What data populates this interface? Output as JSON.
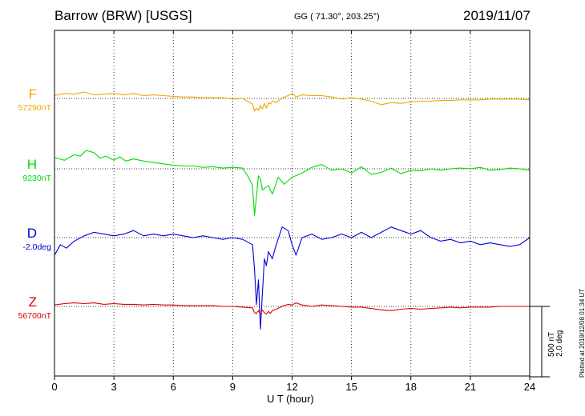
{
  "header": {
    "station": "Barrow (BRW)  [USGS]",
    "coords": "GG ( 71.30°, 203.25°)",
    "date": "2019/11/07"
  },
  "side_note": "Plotted at 2019/12/08 01:34 UT",
  "scale": {
    "amplitude": "500 nT",
    "angle": "2.0 deg"
  },
  "colors": {
    "F": "#f0a800",
    "H": "#00dd00",
    "D": "#0000dd",
    "Z": "#dd0000"
  },
  "channels": [
    {
      "letter": "F",
      "baseline": "57290nT",
      "color": "#f0a800"
    },
    {
      "letter": "H",
      "baseline": "9230nT",
      "color": "#00dd00"
    },
    {
      "letter": "D",
      "baseline": "-2.0deg",
      "color": "#0000dd"
    },
    {
      "letter": "Z",
      "baseline": "56700nT",
      "color": "#dd0000"
    }
  ],
  "chart_data": {
    "type": "line",
    "xlabel": "U T (hour)",
    "xlim": [
      0,
      24
    ],
    "xticks": [
      "0",
      "3",
      "6",
      "9",
      "12",
      "15",
      "18",
      "21",
      "24"
    ],
    "series": [
      {
        "name": "F",
        "unit": "nT",
        "baseline": 57290,
        "x": [
          0,
          0.5,
          1,
          1.5,
          2,
          2.5,
          3,
          3.5,
          4,
          4.5,
          5,
          5.5,
          6,
          6.5,
          7,
          7.5,
          8,
          8.5,
          9,
          9.5,
          10,
          10.1,
          10.2,
          10.3,
          10.4,
          10.5,
          10.6,
          10.7,
          10.8,
          10.9,
          11,
          11.2,
          11.5,
          11.8,
          12,
          12.2,
          12.5,
          13,
          13.5,
          14,
          14.5,
          15,
          15.5,
          16,
          16.5,
          17,
          17.5,
          18,
          18.5,
          19,
          19.5,
          20,
          20.5,
          21,
          21.5,
          22,
          22.5,
          23,
          23.5,
          24
        ],
        "values": [
          20,
          35,
          30,
          45,
          25,
          30,
          35,
          25,
          35,
          20,
          25,
          20,
          15,
          10,
          10,
          5,
          5,
          5,
          -5,
          0,
          -40,
          -90,
          -70,
          -85,
          -50,
          -75,
          -35,
          -70,
          -30,
          -40,
          -20,
          -30,
          5,
          20,
          35,
          10,
          25,
          20,
          20,
          10,
          -5,
          5,
          -5,
          -20,
          -45,
          -30,
          -35,
          -25,
          -20,
          -20,
          -15,
          -15,
          -10,
          -10,
          -10,
          -5,
          -5,
          -5,
          -5,
          -10
        ]
      },
      {
        "name": "H",
        "unit": "nT",
        "baseline": 9230,
        "x": [
          0,
          0.5,
          1,
          1.3,
          1.6,
          2,
          2.3,
          2.6,
          3,
          3.3,
          3.6,
          4,
          4.5,
          5,
          5.5,
          6,
          6.5,
          7,
          7.5,
          8,
          8.5,
          9,
          9.5,
          9.8,
          10,
          10.1,
          10.2,
          10.3,
          10.4,
          10.5,
          10.6,
          10.8,
          11,
          11.3,
          11.6,
          12,
          12.5,
          13,
          13.5,
          14,
          14.5,
          15,
          15.5,
          16,
          16.5,
          17,
          17.5,
          18,
          18.5,
          19,
          19.5,
          20,
          20.5,
          21,
          21.5,
          22,
          22.5,
          23,
          23.5,
          24
        ],
        "values": [
          80,
          60,
          100,
          90,
          130,
          115,
          75,
          90,
          60,
          85,
          55,
          70,
          55,
          45,
          35,
          25,
          20,
          20,
          10,
          15,
          5,
          10,
          5,
          -60,
          -120,
          -330,
          -200,
          -50,
          -70,
          -150,
          -140,
          -120,
          -180,
          -60,
          -110,
          -60,
          -30,
          10,
          30,
          -10,
          0,
          -30,
          15,
          -40,
          -25,
          5,
          -35,
          -10,
          -15,
          0,
          -10,
          0,
          5,
          0,
          10,
          -10,
          -5,
          5,
          0,
          -10
        ]
      },
      {
        "name": "D",
        "unit": "deg",
        "baseline": -2.0,
        "x": [
          0,
          0.3,
          0.6,
          1,
          1.5,
          2,
          2.5,
          3,
          3.5,
          4,
          4.5,
          5,
          5.5,
          6,
          6.5,
          7,
          7.5,
          8,
          8.5,
          9,
          9.5,
          10,
          10.1,
          10.2,
          10.3,
          10.4,
          10.5,
          10.6,
          10.7,
          10.8,
          11,
          11.2,
          11.5,
          11.8,
          12,
          12.2,
          12.5,
          13,
          13.5,
          14,
          14.5,
          15,
          15.5,
          16,
          16.5,
          17,
          17.5,
          18,
          18.5,
          19,
          19.5,
          20,
          20.5,
          21,
          21.5,
          22,
          22.5,
          23,
          23.5,
          24
        ],
        "values": [
          -0.5,
          -0.2,
          -0.3,
          -0.1,
          0.05,
          0.15,
          0.1,
          0.05,
          0.1,
          0.2,
          0.05,
          0.1,
          0.05,
          0.1,
          0.05,
          0.0,
          0.05,
          0.0,
          -0.05,
          0.0,
          -0.05,
          -0.2,
          -0.9,
          -1.9,
          -1.2,
          -2.6,
          -1.6,
          -0.6,
          -0.8,
          -0.4,
          -0.6,
          -0.2,
          0.3,
          0.2,
          -0.2,
          -0.5,
          0.0,
          0.1,
          -0.05,
          0.0,
          0.1,
          0.0,
          0.15,
          0.0,
          0.15,
          0.3,
          0.2,
          0.1,
          0.2,
          0.0,
          -0.1,
          -0.05,
          -0.15,
          -0.1,
          -0.2,
          -0.15,
          -0.2,
          -0.25,
          -0.2,
          0.0
        ]
      },
      {
        "name": "Z",
        "unit": "nT",
        "baseline": 56700,
        "x": [
          0,
          0.5,
          1,
          1.5,
          2,
          2.5,
          3,
          3.5,
          4,
          4.5,
          5,
          5.5,
          6,
          6.5,
          7,
          7.5,
          8,
          8.5,
          9,
          9.5,
          10,
          10.1,
          10.2,
          10.3,
          10.4,
          10.5,
          10.6,
          10.7,
          10.8,
          10.9,
          11,
          11.2,
          11.5,
          11.8,
          12,
          12.2,
          12.5,
          13,
          13.5,
          14,
          14.5,
          15,
          15.5,
          16,
          16.5,
          17,
          17.5,
          18,
          18.5,
          19,
          19.5,
          20,
          20.5,
          21,
          21.5,
          22,
          22.5,
          23,
          23.5,
          24
        ],
        "values": [
          10,
          20,
          25,
          20,
          25,
          15,
          20,
          15,
          15,
          10,
          15,
          10,
          10,
          5,
          5,
          5,
          5,
          0,
          0,
          -5,
          -10,
          -45,
          -50,
          -30,
          -55,
          -25,
          -45,
          -55,
          -35,
          -50,
          -30,
          -20,
          0,
          15,
          10,
          25,
          10,
          0,
          10,
          5,
          0,
          -5,
          -5,
          -15,
          -25,
          -30,
          -20,
          -15,
          -20,
          -15,
          -10,
          -5,
          -10,
          -5,
          -5,
          -5,
          0,
          0,
          0,
          0
        ]
      }
    ]
  }
}
